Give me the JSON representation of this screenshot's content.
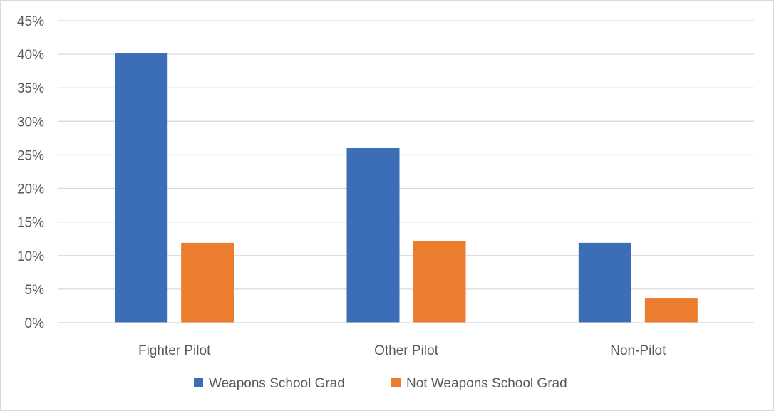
{
  "chart_data": {
    "type": "bar",
    "categories": [
      "Fighter Pilot",
      "Other Pilot",
      "Non-Pilot"
    ],
    "series": [
      {
        "name": "Weapons School Grad",
        "values": [
          40.2,
          26.0,
          11.9
        ],
        "color": "#3c6db7"
      },
      {
        "name": "Not Weapons School Grad",
        "values": [
          11.9,
          12.1,
          3.6
        ],
        "color": "#ed7d2e"
      }
    ],
    "ylim": [
      0,
      45
    ],
    "yticks": [
      0,
      5,
      10,
      15,
      20,
      25,
      30,
      35,
      40,
      45
    ],
    "ytick_labels": [
      "0%",
      "5%",
      "10%",
      "15%",
      "20%",
      "25%",
      "30%",
      "35%",
      "40%",
      "45%"
    ],
    "grid": true,
    "legend_position": "bottom",
    "gridline_color": "#d9d9d9"
  }
}
